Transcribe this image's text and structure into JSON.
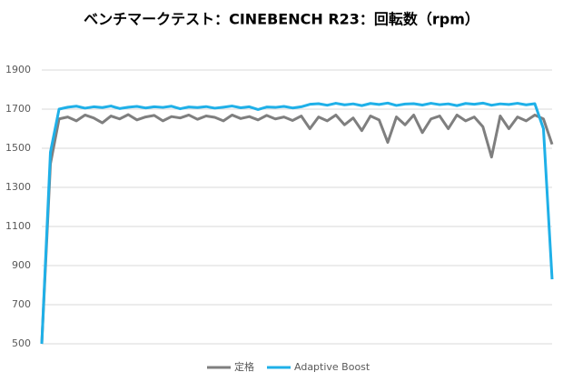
{
  "chart_data": {
    "type": "line",
    "title": "ベンチマークテスト：CINEBENCH R23：回転数（rpm）",
    "series": [
      {
        "name": "定格",
        "color": "#7f7f7f",
        "values": [
          500,
          1420,
          1650,
          1660,
          1640,
          1670,
          1655,
          1630,
          1665,
          1650,
          1672,
          1645,
          1660,
          1668,
          1640,
          1662,
          1655,
          1670,
          1648,
          1665,
          1658,
          1640,
          1670,
          1652,
          1662,
          1645,
          1668,
          1650,
          1660,
          1642,
          1665,
          1600,
          1660,
          1640,
          1670,
          1620,
          1655,
          1590,
          1665,
          1645,
          1530,
          1660,
          1620,
          1670,
          1580,
          1650,
          1665,
          1600,
          1670,
          1640,
          1660,
          1610,
          1455,
          1665,
          1600,
          1660,
          1640,
          1670,
          1650,
          1520
        ]
      },
      {
        "name": "Adaptive Boost",
        "color": "#1fb0e8",
        "values": [
          500,
          1480,
          1700,
          1710,
          1715,
          1705,
          1712,
          1708,
          1716,
          1703,
          1710,
          1714,
          1706,
          1712,
          1709,
          1715,
          1702,
          1711,
          1708,
          1713,
          1705,
          1710,
          1716,
          1707,
          1712,
          1698,
          1711,
          1709,
          1714,
          1706,
          1712,
          1725,
          1728,
          1720,
          1730,
          1722,
          1727,
          1718,
          1729,
          1724,
          1731,
          1719,
          1726,
          1728,
          1721,
          1730,
          1723,
          1727,
          1718,
          1729,
          1725,
          1731,
          1720,
          1727,
          1724,
          1730,
          1722,
          1728,
          1600,
          830
        ]
      }
    ],
    "ylim": [
      500,
      1900
    ],
    "yticks": [
      500,
      700,
      900,
      1100,
      1300,
      1500,
      1700,
      1900
    ],
    "grid": true,
    "legend": "bottom"
  }
}
